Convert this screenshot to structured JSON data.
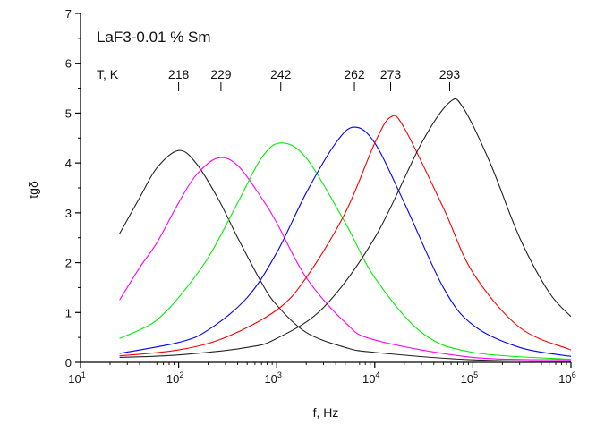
{
  "chart_data": {
    "type": "line",
    "title": "LaF3-0.01 % Sm",
    "xlabel": "f, Hz",
    "ylabel": "tgδ",
    "xscale": "log",
    "xlim": [
      10,
      1000000
    ],
    "ylim": [
      0,
      7
    ],
    "x_ticks": [
      {
        "value": 10,
        "base": "10",
        "exp": "1"
      },
      {
        "value": 100,
        "base": "10",
        "exp": "2"
      },
      {
        "value": 1000,
        "base": "10",
        "exp": "3"
      },
      {
        "value": 10000,
        "base": "10",
        "exp": "4"
      },
      {
        "value": 100000,
        "base": "10",
        "exp": "5"
      },
      {
        "value": 1000000,
        "base": "10",
        "exp": "6"
      }
    ],
    "y_ticks": [
      "0",
      "1",
      "2",
      "3",
      "4",
      "5",
      "6",
      "7"
    ],
    "grid": false,
    "legend": "none",
    "temperature_axis_label": "T, K",
    "temperature_markers": [
      {
        "label": "218",
        "x": 100
      },
      {
        "label": "229",
        "x": 270
      },
      {
        "label": "242",
        "x": 1100
      },
      {
        "label": "262",
        "x": 6200
      },
      {
        "label": "273",
        "x": 14500
      },
      {
        "label": "293",
        "x": 58000
      }
    ],
    "series": [
      {
        "color": "#222222",
        "values": [
          [
            25,
            2.58
          ],
          [
            40,
            3.3
          ],
          [
            60,
            3.9
          ],
          [
            100,
            4.25
          ],
          [
            150,
            4.0
          ],
          [
            250,
            3.3
          ],
          [
            400,
            2.5
          ],
          [
            700,
            1.6
          ],
          [
            1000,
            1.15
          ],
          [
            2000,
            0.6
          ],
          [
            5000,
            0.3
          ],
          [
            10000,
            0.2
          ],
          [
            100000,
            0.05
          ],
          [
            1000000,
            0.02
          ]
        ]
      },
      {
        "color": "#ff00ff",
        "values": [
          [
            25,
            1.25
          ],
          [
            40,
            1.9
          ],
          [
            60,
            2.4
          ],
          [
            100,
            3.2
          ],
          [
            150,
            3.75
          ],
          [
            250,
            4.1
          ],
          [
            400,
            3.95
          ],
          [
            700,
            3.3
          ],
          [
            1000,
            2.8
          ],
          [
            2000,
            1.7
          ],
          [
            5000,
            0.8
          ],
          [
            10000,
            0.45
          ],
          [
            100000,
            0.1
          ],
          [
            1000000,
            0.05
          ]
        ]
      },
      {
        "color": "#00ee00",
        "values": [
          [
            25,
            0.48
          ],
          [
            40,
            0.65
          ],
          [
            60,
            0.85
          ],
          [
            100,
            1.3
          ],
          [
            200,
            2.1
          ],
          [
            400,
            3.2
          ],
          [
            700,
            4.1
          ],
          [
            1100,
            4.4
          ],
          [
            2000,
            4.1
          ],
          [
            5000,
            2.8
          ],
          [
            10000,
            1.7
          ],
          [
            30000,
            0.6
          ],
          [
            100000,
            0.2
          ],
          [
            1000000,
            0.06
          ]
        ]
      },
      {
        "color": "#0000ff",
        "values": [
          [
            25,
            0.18
          ],
          [
            100,
            0.4
          ],
          [
            200,
            0.65
          ],
          [
            500,
            1.3
          ],
          [
            1000,
            2.2
          ],
          [
            2000,
            3.4
          ],
          [
            4000,
            4.4
          ],
          [
            6200,
            4.72
          ],
          [
            10000,
            4.4
          ],
          [
            20000,
            3.2
          ],
          [
            50000,
            1.5
          ],
          [
            100000,
            0.75
          ],
          [
            300000,
            0.3
          ],
          [
            1000000,
            0.12
          ]
        ]
      },
      {
        "color": "#ff0000",
        "values": [
          [
            25,
            0.13
          ],
          [
            100,
            0.25
          ],
          [
            300,
            0.5
          ],
          [
            1000,
            1.05
          ],
          [
            2000,
            1.7
          ],
          [
            5000,
            3.0
          ],
          [
            10000,
            4.4
          ],
          [
            14500,
            4.92
          ],
          [
            20000,
            4.7
          ],
          [
            50000,
            3.1
          ],
          [
            100000,
            1.8
          ],
          [
            300000,
            0.7
          ],
          [
            1000000,
            0.25
          ]
        ]
      },
      {
        "color": "#222222",
        "values": [
          [
            25,
            0.1
          ],
          [
            100,
            0.15
          ],
          [
            500,
            0.3
          ],
          [
            1000,
            0.48
          ],
          [
            3000,
            1.1
          ],
          [
            10000,
            2.5
          ],
          [
            30000,
            4.4
          ],
          [
            58000,
            5.22
          ],
          [
            80000,
            5.1
          ],
          [
            150000,
            4.0
          ],
          [
            300000,
            2.5
          ],
          [
            600000,
            1.4
          ],
          [
            1000000,
            0.92
          ]
        ]
      }
    ]
  }
}
